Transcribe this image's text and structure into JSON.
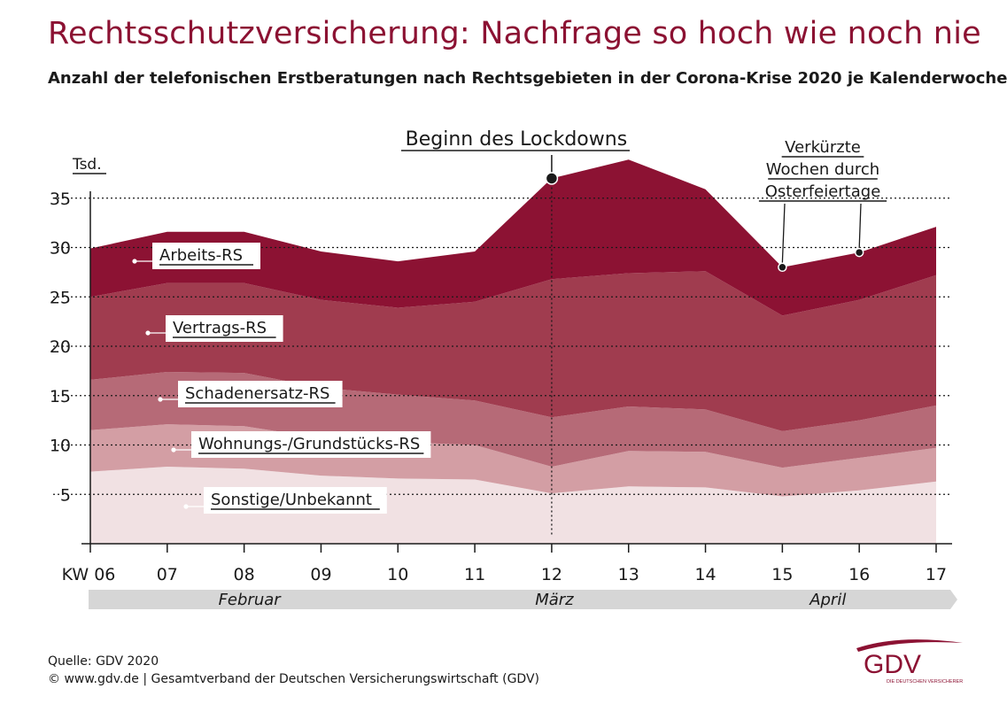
{
  "title": "Rechtsschutzversicherung: Nachfrage so hoch wie noch nie",
  "subtitle": "Anzahl der telefonischen Erstberatungen nach Rechtsgebieten in der Corona-Krise 2020 je Kalenderwoche",
  "chart_data": {
    "type": "area",
    "stacked": true,
    "unit_label": "Tsd.",
    "xlabel_prefix": "KW",
    "categories": [
      "06",
      "07",
      "08",
      "09",
      "10",
      "11",
      "12",
      "13",
      "14",
      "15",
      "16",
      "17"
    ],
    "x_tick_labels": [
      "KW 06",
      "07",
      "08",
      "09",
      "10",
      "11",
      "12",
      "13",
      "14",
      "15",
      "16",
      "17"
    ],
    "ylim": [
      0,
      37
    ],
    "y_ticks": [
      5,
      10,
      15,
      20,
      25,
      30,
      35
    ],
    "grid": true,
    "series": [
      {
        "name": "Sonstige/Unbekannt",
        "color": "#f1e1e3",
        "values": [
          7.3,
          7.8,
          7.6,
          6.9,
          6.6,
          6.5,
          5.1,
          5.8,
          5.7,
          4.8,
          5.4,
          6.3
        ]
      },
      {
        "name": "Wohnungs-/Grundstücks-RS",
        "color": "#d39ea4",
        "values": [
          4.2,
          4.3,
          4.3,
          3.8,
          3.7,
          3.5,
          2.7,
          3.6,
          3.6,
          2.9,
          3.3,
          3.4
        ]
      },
      {
        "name": "Schadenersatz-RS",
        "color": "#b66a77",
        "values": [
          5.1,
          5.3,
          5.4,
          5.1,
          4.8,
          4.5,
          5.0,
          4.5,
          4.3,
          3.7,
          3.8,
          4.3
        ]
      },
      {
        "name": "Vertrags-RS",
        "color": "#a03c4f",
        "values": [
          8.4,
          9.0,
          9.1,
          8.9,
          8.8,
          10.0,
          14.0,
          13.5,
          14.0,
          11.7,
          12.2,
          13.2
        ]
      },
      {
        "name": "Arbeits-RS",
        "color": "#8c1233",
        "values": [
          4.9,
          5.2,
          5.2,
          4.9,
          4.7,
          5.1,
          10.2,
          11.5,
          8.3,
          4.9,
          4.8,
          4.9
        ]
      }
    ],
    "annotations": [
      {
        "label": "Beginn des Lockdowns",
        "category": "12",
        "value": 37.0
      },
      {
        "label_lines": [
          "Verkürzte",
          "Wochen durch",
          "Osterfeiertage"
        ],
        "points": [
          {
            "category": "15",
            "value": 28.0
          },
          {
            "category": "16",
            "value": 29.5
          }
        ]
      }
    ],
    "months": [
      "Februar",
      "März",
      "April"
    ],
    "month_spans": [
      [
        "06",
        "10"
      ],
      [
        "10",
        "14"
      ],
      [
        "14",
        "17"
      ]
    ]
  },
  "footer": {
    "source": "Quelle: GDV 2020",
    "copyright": "© www.gdv.de | Gesamtverband der Deutschen Versicherungswirtschaft (GDV)"
  },
  "logo": {
    "text": "GDV",
    "tagline": "DIE DEUTSCHEN VERSICHERER",
    "color": "#8c1233"
  }
}
